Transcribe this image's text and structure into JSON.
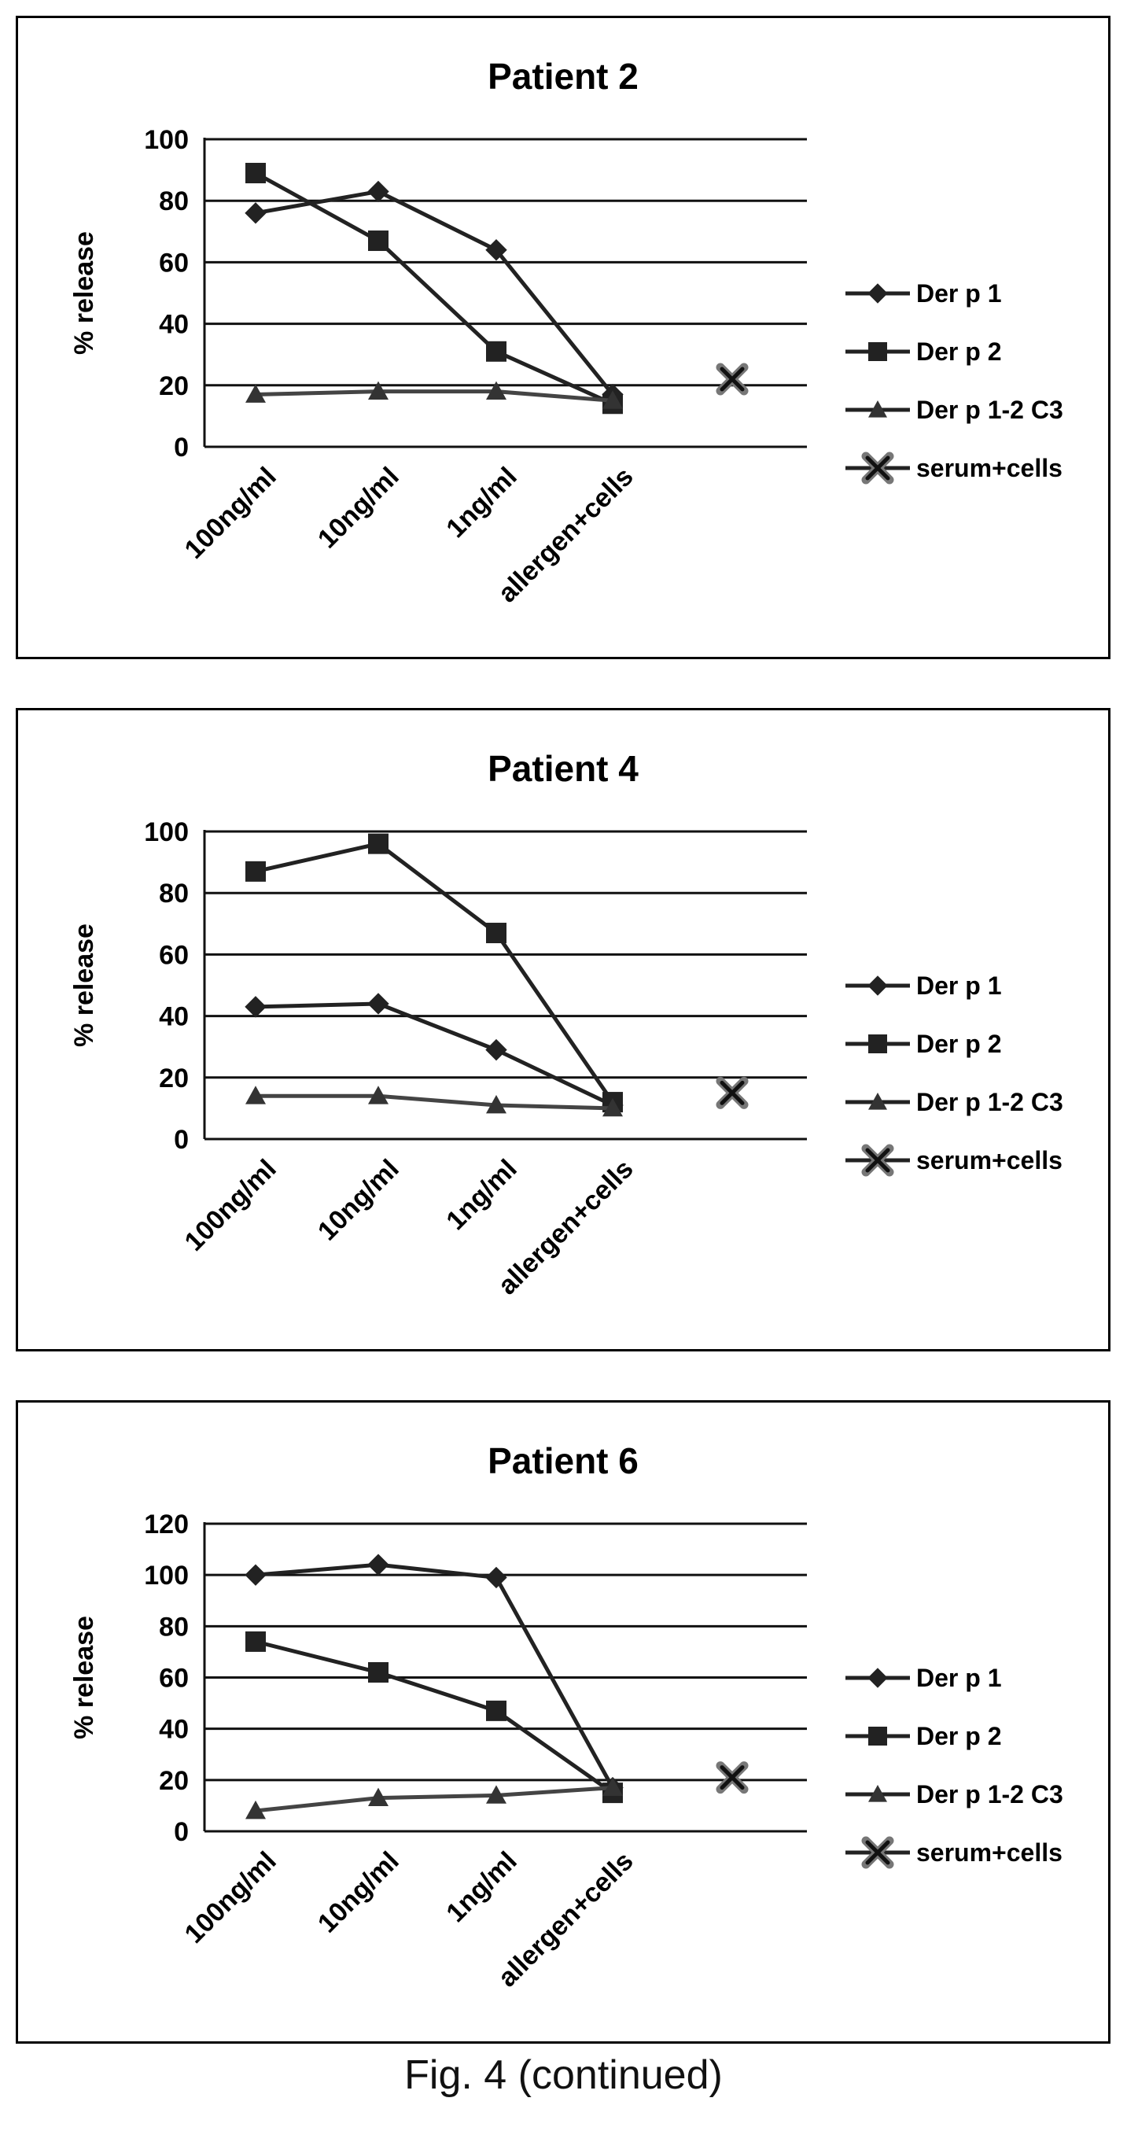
{
  "caption": "Fig. 4 (continued)",
  "chart_data": [
    {
      "type": "line",
      "title": "Patient 2",
      "ylabel": "% release",
      "xlabel": "",
      "categories": [
        "100ng/ml",
        "10ng/ml",
        "1ng/ml",
        "allergen+cells"
      ],
      "ylim": [
        0,
        100
      ],
      "yticks": [
        0,
        20,
        40,
        60,
        80,
        100
      ],
      "grid": true,
      "legend": "right",
      "series": [
        {
          "name": "Der p 1",
          "marker": "diamond",
          "values": [
            76,
            83,
            64,
            17
          ]
        },
        {
          "name": "Der p 2",
          "marker": "square",
          "values": [
            89,
            67,
            31,
            14
          ]
        },
        {
          "name": "Der p 1-2 C3",
          "marker": "triangle",
          "values": [
            17,
            18,
            18,
            15
          ]
        },
        {
          "name": "serum+cells",
          "marker": "x",
          "values": [
            null,
            null,
            null,
            null
          ],
          "extra_point": 22
        }
      ]
    },
    {
      "type": "line",
      "title": "Patient 4",
      "ylabel": "% release",
      "xlabel": "",
      "categories": [
        "100ng/ml",
        "10ng/ml",
        "1ng/ml",
        "allergen+cells"
      ],
      "ylim": [
        0,
        100
      ],
      "yticks": [
        0,
        20,
        40,
        60,
        80,
        100
      ],
      "grid": true,
      "legend": "right",
      "series": [
        {
          "name": "Der p 1",
          "marker": "diamond",
          "values": [
            43,
            44,
            29,
            11
          ]
        },
        {
          "name": "Der p 2",
          "marker": "square",
          "values": [
            87,
            96,
            67,
            12
          ]
        },
        {
          "name": "Der p 1-2 C3",
          "marker": "triangle",
          "values": [
            14,
            14,
            11,
            10
          ]
        },
        {
          "name": "serum+cells",
          "marker": "x",
          "values": [
            null,
            null,
            null,
            null
          ],
          "extra_point": 15
        }
      ]
    },
    {
      "type": "line",
      "title": "Patient 6",
      "ylabel": "% release",
      "xlabel": "",
      "categories": [
        "100ng/ml",
        "10ng/ml",
        "1ng/ml",
        "allergen+cells"
      ],
      "ylim": [
        0,
        120
      ],
      "yticks": [
        0,
        20,
        40,
        60,
        80,
        100,
        120
      ],
      "grid": true,
      "legend": "right",
      "series": [
        {
          "name": "Der p 1",
          "marker": "diamond",
          "values": [
            100,
            104,
            99,
            17
          ]
        },
        {
          "name": "Der p 2",
          "marker": "square",
          "values": [
            74,
            62,
            47,
            15
          ]
        },
        {
          "name": "Der p 1-2 C3",
          "marker": "triangle",
          "values": [
            8,
            13,
            14,
            17
          ]
        },
        {
          "name": "serum+cells",
          "marker": "x",
          "values": [
            null,
            null,
            null,
            null
          ],
          "extra_point": 21
        }
      ]
    }
  ]
}
